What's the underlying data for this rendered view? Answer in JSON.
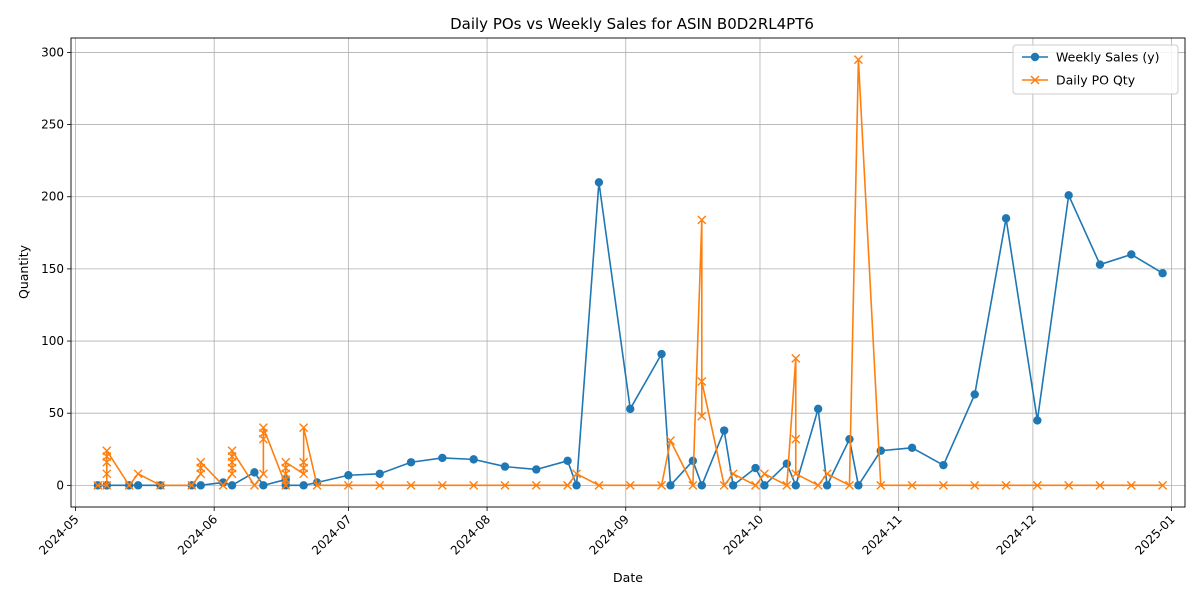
{
  "chart_data": {
    "type": "line",
    "title": "Daily POs vs Weekly Sales for ASIN B0D2RL4PT6",
    "xlabel": "Date",
    "ylabel": "Quantity",
    "x_axis": "date",
    "xlim": [
      "2024-04-30",
      "2025-01-04"
    ],
    "ylim": [
      -15,
      310
    ],
    "x_ticks": [
      "2024-05-01",
      "2024-06-01",
      "2024-07-01",
      "2024-08-01",
      "2024-09-01",
      "2024-10-01",
      "2024-11-01",
      "2024-12-01",
      "2025-01-01"
    ],
    "x_tick_labels": [
      "2024-05",
      "2024-06",
      "2024-07",
      "2024-08",
      "2024-09",
      "2024-10",
      "2024-11",
      "2024-12",
      "2025-01"
    ],
    "y_ticks": [
      0,
      50,
      100,
      150,
      200,
      250,
      300
    ],
    "grid": true,
    "legend_position": "top-right",
    "series": [
      {
        "name": "Weekly Sales (y)",
        "color": "#1f77b4",
        "marker": "circle",
        "points": [
          [
            "2024-05-06",
            0
          ],
          [
            "2024-05-08",
            0
          ],
          [
            "2024-05-08",
            0
          ],
          [
            "2024-05-13",
            0
          ],
          [
            "2024-05-15",
            0
          ],
          [
            "2024-05-20",
            0
          ],
          [
            "2024-05-27",
            0
          ],
          [
            "2024-05-29",
            0
          ],
          [
            "2024-06-03",
            2
          ],
          [
            "2024-06-05",
            0
          ],
          [
            "2024-06-10",
            9
          ],
          [
            "2024-06-12",
            0
          ],
          [
            "2024-06-17",
            4
          ],
          [
            "2024-06-17",
            0
          ],
          [
            "2024-06-21",
            0
          ],
          [
            "2024-06-24",
            2
          ],
          [
            "2024-07-01",
            7
          ],
          [
            "2024-07-08",
            8
          ],
          [
            "2024-07-15",
            16
          ],
          [
            "2024-07-22",
            19
          ],
          [
            "2024-07-29",
            18
          ],
          [
            "2024-08-05",
            13
          ],
          [
            "2024-08-12",
            11
          ],
          [
            "2024-08-19",
            17
          ],
          [
            "2024-08-21",
            0
          ],
          [
            "2024-08-26",
            210
          ],
          [
            "2024-09-02",
            53
          ],
          [
            "2024-09-09",
            91
          ],
          [
            "2024-09-11",
            0
          ],
          [
            "2024-09-16",
            17
          ],
          [
            "2024-09-18",
            0
          ],
          [
            "2024-09-23",
            38
          ],
          [
            "2024-09-25",
            0
          ],
          [
            "2024-09-30",
            12
          ],
          [
            "2024-10-02",
            0
          ],
          [
            "2024-10-07",
            15
          ],
          [
            "2024-10-09",
            0
          ],
          [
            "2024-10-14",
            53
          ],
          [
            "2024-10-16",
            0
          ],
          [
            "2024-10-21",
            32
          ],
          [
            "2024-10-23",
            0
          ],
          [
            "2024-10-28",
            24
          ],
          [
            "2024-11-04",
            26
          ],
          [
            "2024-11-11",
            14
          ],
          [
            "2024-11-18",
            63
          ],
          [
            "2024-11-25",
            185
          ],
          [
            "2024-12-02",
            45
          ],
          [
            "2024-12-09",
            201
          ],
          [
            "2024-12-16",
            153
          ],
          [
            "2024-12-23",
            160
          ],
          [
            "2024-12-30",
            147
          ]
        ]
      },
      {
        "name": "Daily PO Qty",
        "color": "#ff7f0e",
        "marker": "x",
        "points": [
          [
            "2024-05-06",
            0
          ],
          [
            "2024-05-08",
            0
          ],
          [
            "2024-05-08",
            8
          ],
          [
            "2024-05-08",
            16
          ],
          [
            "2024-05-08",
            20
          ],
          [
            "2024-05-08",
            24
          ],
          [
            "2024-05-13",
            0
          ],
          [
            "2024-05-15",
            8
          ],
          [
            "2024-05-20",
            0
          ],
          [
            "2024-05-27",
            0
          ],
          [
            "2024-05-29",
            8
          ],
          [
            "2024-05-29",
            12
          ],
          [
            "2024-05-29",
            16
          ],
          [
            "2024-06-03",
            0
          ],
          [
            "2024-06-05",
            8
          ],
          [
            "2024-06-05",
            12
          ],
          [
            "2024-06-05",
            16
          ],
          [
            "2024-06-05",
            20
          ],
          [
            "2024-06-05",
            24
          ],
          [
            "2024-06-10",
            0
          ],
          [
            "2024-06-12",
            8
          ],
          [
            "2024-06-12",
            32
          ],
          [
            "2024-06-12",
            36
          ],
          [
            "2024-06-12",
            40
          ],
          [
            "2024-06-17",
            0
          ],
          [
            "2024-06-17",
            4
          ],
          [
            "2024-06-17",
            8
          ],
          [
            "2024-06-17",
            12
          ],
          [
            "2024-06-17",
            16
          ],
          [
            "2024-06-21",
            8
          ],
          [
            "2024-06-21",
            12
          ],
          [
            "2024-06-21",
            16
          ],
          [
            "2024-06-21",
            40
          ],
          [
            "2024-06-24",
            0
          ],
          [
            "2024-07-01",
            0
          ],
          [
            "2024-07-08",
            0
          ],
          [
            "2024-07-15",
            0
          ],
          [
            "2024-07-22",
            0
          ],
          [
            "2024-07-29",
            0
          ],
          [
            "2024-08-05",
            0
          ],
          [
            "2024-08-12",
            0
          ],
          [
            "2024-08-19",
            0
          ],
          [
            "2024-08-21",
            8
          ],
          [
            "2024-08-26",
            0
          ],
          [
            "2024-09-02",
            0
          ],
          [
            "2024-09-09",
            0
          ],
          [
            "2024-09-11",
            31
          ],
          [
            "2024-09-16",
            0
          ],
          [
            "2024-09-18",
            184
          ],
          [
            "2024-09-18",
            48
          ],
          [
            "2024-09-18",
            72
          ],
          [
            "2024-09-23",
            0
          ],
          [
            "2024-09-25",
            8
          ],
          [
            "2024-09-30",
            0
          ],
          [
            "2024-10-02",
            8
          ],
          [
            "2024-10-07",
            0
          ],
          [
            "2024-10-09",
            88
          ],
          [
            "2024-10-09",
            32
          ],
          [
            "2024-10-09",
            8
          ],
          [
            "2024-10-14",
            0
          ],
          [
            "2024-10-16",
            8
          ],
          [
            "2024-10-21",
            0
          ],
          [
            "2024-10-23",
            295
          ],
          [
            "2024-10-28",
            0
          ],
          [
            "2024-11-04",
            0
          ],
          [
            "2024-11-11",
            0
          ],
          [
            "2024-11-18",
            0
          ],
          [
            "2024-11-25",
            0
          ],
          [
            "2024-12-02",
            0
          ],
          [
            "2024-12-09",
            0
          ],
          [
            "2024-12-16",
            0
          ],
          [
            "2024-12-23",
            0
          ],
          [
            "2024-12-30",
            0
          ]
        ]
      }
    ]
  }
}
